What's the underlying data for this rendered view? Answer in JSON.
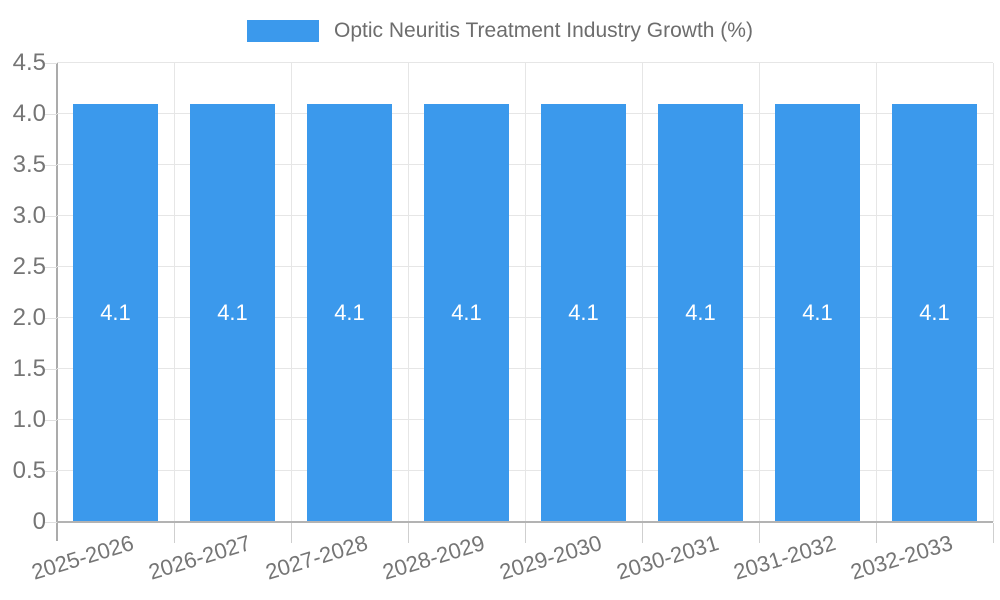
{
  "chart_data": {
    "type": "bar",
    "title": "Optic Neuritis Treatment Industry Growth (%)",
    "legend_position": "top",
    "categories": [
      "2025-2026",
      "2026-2027",
      "2027-2028",
      "2028-2029",
      "2029-2030",
      "2030-2031",
      "2031-2032",
      "2032-2033"
    ],
    "series": [
      {
        "name": "Optic Neuritis Treatment Industry Growth (%)",
        "values": [
          4.1,
          4.1,
          4.1,
          4.1,
          4.1,
          4.1,
          4.1,
          4.1
        ]
      }
    ],
    "bar_value_labels": [
      "4.1",
      "4.1",
      "4.1",
      "4.1",
      "4.1",
      "4.1",
      "4.1",
      "4.1"
    ],
    "xlabel": "",
    "ylabel": "",
    "ylim": [
      0,
      4.5
    ],
    "ytick_labels": [
      "0",
      "0.5",
      "1.0",
      "1.5",
      "2.0",
      "2.5",
      "3.0",
      "3.5",
      "4.0",
      "4.5"
    ],
    "grid": "on",
    "colors": {
      "bar": "#3b99ec",
      "grid": "#e6e6e6",
      "axis_line": "#ababab",
      "axis_text": "#757575",
      "title_text": "#6d6d6d",
      "bar_label_text": "#ffffff",
      "background": "#ffffff"
    }
  }
}
